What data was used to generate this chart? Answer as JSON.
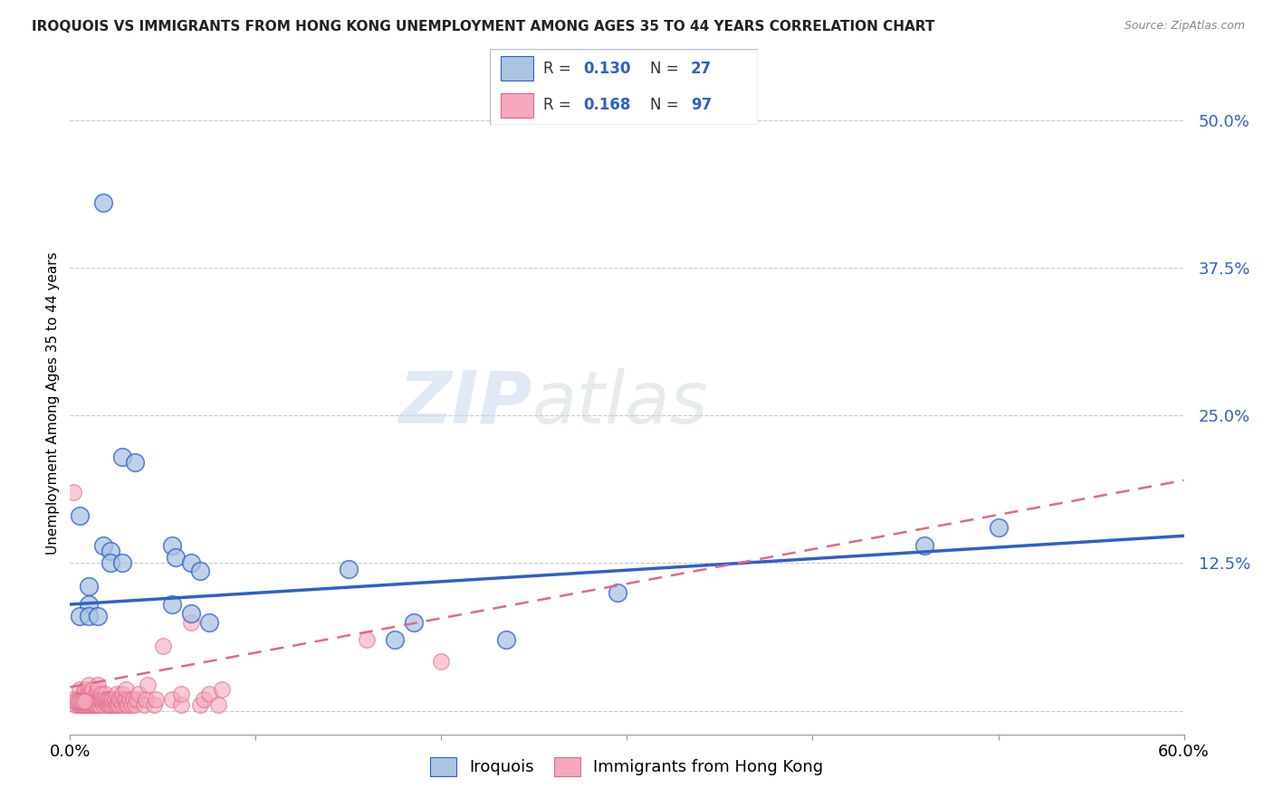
{
  "title": "IROQUOIS VS IMMIGRANTS FROM HONG KONG UNEMPLOYMENT AMONG AGES 35 TO 44 YEARS CORRELATION CHART",
  "source": "Source: ZipAtlas.com",
  "ylabel": "Unemployment Among Ages 35 to 44 years",
  "xlim": [
    0.0,
    0.6
  ],
  "ylim": [
    -0.02,
    0.54
  ],
  "yticks": [
    0.0,
    0.125,
    0.25,
    0.375,
    0.5
  ],
  "ytick_labels": [
    "",
    "12.5%",
    "25.0%",
    "37.5%",
    "50.0%"
  ],
  "xticks": [
    0.0,
    0.1,
    0.2,
    0.3,
    0.4,
    0.5,
    0.6
  ],
  "blue_color": "#aac4e2",
  "pink_color": "#f5a8bc",
  "line_blue": "#3060c8",
  "line_pink": "#e06888",
  "watermark_zip": "ZIP",
  "watermark_atlas": "atlas",
  "iroquois_points": [
    [
      0.018,
      0.43
    ],
    [
      0.005,
      0.165
    ],
    [
      0.028,
      0.215
    ],
    [
      0.018,
      0.14
    ],
    [
      0.022,
      0.135
    ],
    [
      0.022,
      0.125
    ],
    [
      0.028,
      0.125
    ],
    [
      0.01,
      0.105
    ],
    [
      0.01,
      0.09
    ],
    [
      0.005,
      0.08
    ],
    [
      0.01,
      0.08
    ],
    [
      0.015,
      0.08
    ],
    [
      0.035,
      0.21
    ],
    [
      0.055,
      0.14
    ],
    [
      0.057,
      0.13
    ],
    [
      0.065,
      0.125
    ],
    [
      0.07,
      0.118
    ],
    [
      0.055,
      0.09
    ],
    [
      0.065,
      0.082
    ],
    [
      0.075,
      0.075
    ],
    [
      0.15,
      0.12
    ],
    [
      0.175,
      0.06
    ],
    [
      0.185,
      0.075
    ],
    [
      0.235,
      0.06
    ],
    [
      0.295,
      0.1
    ],
    [
      0.46,
      0.14
    ],
    [
      0.5,
      0.155
    ]
  ],
  "hk_points": [
    [
      0.002,
      0.185
    ],
    [
      0.003,
      0.005
    ],
    [
      0.004,
      0.005
    ],
    [
      0.004,
      0.01
    ],
    [
      0.005,
      0.005
    ],
    [
      0.005,
      0.01
    ],
    [
      0.005,
      0.018
    ],
    [
      0.006,
      0.005
    ],
    [
      0.006,
      0.01
    ],
    [
      0.007,
      0.005
    ],
    [
      0.007,
      0.01
    ],
    [
      0.007,
      0.015
    ],
    [
      0.008,
      0.005
    ],
    [
      0.008,
      0.01
    ],
    [
      0.008,
      0.018
    ],
    [
      0.009,
      0.005
    ],
    [
      0.009,
      0.01
    ],
    [
      0.009,
      0.014
    ],
    [
      0.01,
      0.005
    ],
    [
      0.01,
      0.01
    ],
    [
      0.01,
      0.015
    ],
    [
      0.01,
      0.022
    ],
    [
      0.011,
      0.005
    ],
    [
      0.011,
      0.01
    ],
    [
      0.011,
      0.014
    ],
    [
      0.012,
      0.005
    ],
    [
      0.012,
      0.01
    ],
    [
      0.012,
      0.018
    ],
    [
      0.013,
      0.005
    ],
    [
      0.013,
      0.01
    ],
    [
      0.014,
      0.005
    ],
    [
      0.014,
      0.01
    ],
    [
      0.014,
      0.014
    ],
    [
      0.015,
      0.005
    ],
    [
      0.015,
      0.01
    ],
    [
      0.015,
      0.018
    ],
    [
      0.015,
      0.022
    ],
    [
      0.016,
      0.005
    ],
    [
      0.016,
      0.01
    ],
    [
      0.017,
      0.01
    ],
    [
      0.017,
      0.014
    ],
    [
      0.018,
      0.005
    ],
    [
      0.018,
      0.01
    ],
    [
      0.019,
      0.01
    ],
    [
      0.019,
      0.014
    ],
    [
      0.02,
      0.005
    ],
    [
      0.02,
      0.01
    ],
    [
      0.021,
      0.005
    ],
    [
      0.021,
      0.01
    ],
    [
      0.022,
      0.005
    ],
    [
      0.022,
      0.01
    ],
    [
      0.023,
      0.005
    ],
    [
      0.023,
      0.01
    ],
    [
      0.024,
      0.005
    ],
    [
      0.024,
      0.01
    ],
    [
      0.025,
      0.005
    ],
    [
      0.025,
      0.014
    ],
    [
      0.026,
      0.005
    ],
    [
      0.026,
      0.01
    ],
    [
      0.027,
      0.01
    ],
    [
      0.028,
      0.005
    ],
    [
      0.028,
      0.014
    ],
    [
      0.029,
      0.01
    ],
    [
      0.03,
      0.005
    ],
    [
      0.03,
      0.01
    ],
    [
      0.03,
      0.018
    ],
    [
      0.031,
      0.005
    ],
    [
      0.032,
      0.01
    ],
    [
      0.033,
      0.005
    ],
    [
      0.034,
      0.01
    ],
    [
      0.035,
      0.005
    ],
    [
      0.036,
      0.01
    ],
    [
      0.037,
      0.014
    ],
    [
      0.04,
      0.005
    ],
    [
      0.041,
      0.01
    ],
    [
      0.042,
      0.022
    ],
    [
      0.045,
      0.005
    ],
    [
      0.046,
      0.01
    ],
    [
      0.05,
      0.055
    ],
    [
      0.055,
      0.01
    ],
    [
      0.06,
      0.005
    ],
    [
      0.06,
      0.014
    ],
    [
      0.065,
      0.075
    ],
    [
      0.07,
      0.005
    ],
    [
      0.072,
      0.01
    ],
    [
      0.075,
      0.014
    ],
    [
      0.08,
      0.005
    ],
    [
      0.082,
      0.018
    ],
    [
      0.16,
      0.06
    ],
    [
      0.2,
      0.042
    ],
    [
      0.002,
      0.01
    ],
    [
      0.003,
      0.008
    ],
    [
      0.004,
      0.008
    ],
    [
      0.005,
      0.008
    ],
    [
      0.006,
      0.008
    ],
    [
      0.007,
      0.008
    ],
    [
      0.008,
      0.008
    ]
  ],
  "blue_line_x": [
    0.0,
    0.6
  ],
  "blue_line_y": [
    0.09,
    0.148
  ],
  "pink_line_x": [
    0.0,
    0.6
  ],
  "pink_line_y": [
    0.02,
    0.195
  ]
}
